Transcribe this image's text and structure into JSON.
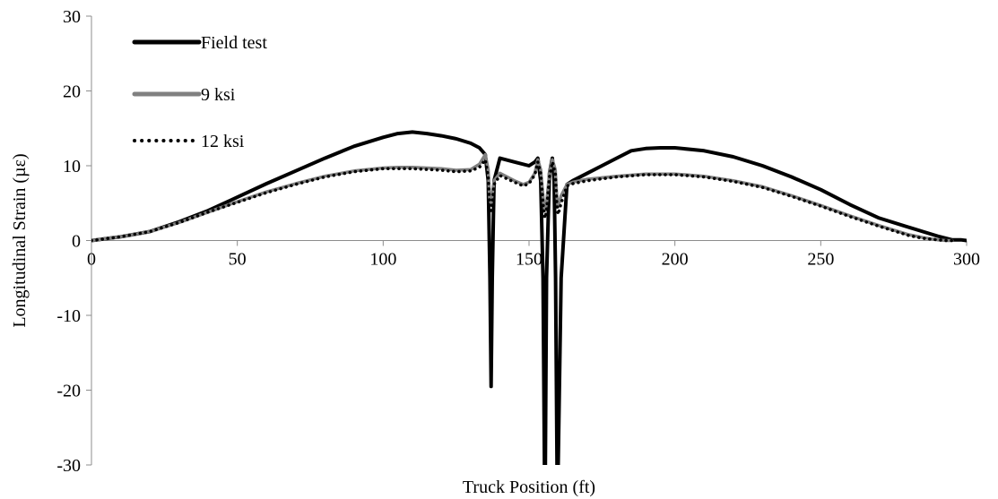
{
  "chart_data": {
    "type": "line",
    "title": "",
    "xlabel": "Truck Position (ft)",
    "ylabel": "Longitudinal Strain (µε)",
    "xlim": [
      0,
      300
    ],
    "ylim": [
      -30,
      30
    ],
    "x_ticks": [
      0,
      50,
      100,
      150,
      200,
      250,
      300
    ],
    "y_ticks": [
      -30,
      -20,
      -10,
      0,
      10,
      20,
      30
    ],
    "grid": false,
    "legend_position": "top-left",
    "series": [
      {
        "name": "Field test",
        "color": "#000000",
        "style": "solid",
        "x": [
          0,
          10,
          20,
          30,
          40,
          50,
          60,
          70,
          80,
          90,
          100,
          105,
          110,
          115,
          120,
          125,
          130,
          133,
          135,
          136,
          136.6,
          137,
          137.4,
          138,
          140,
          145,
          150,
          152,
          153,
          154,
          154.8,
          155.3,
          155.6,
          156,
          157,
          158,
          158.6,
          159.1,
          159.6,
          160,
          161,
          163,
          165,
          170,
          175,
          180,
          185,
          190,
          195,
          200,
          210,
          220,
          230,
          240,
          250,
          260,
          270,
          280,
          285,
          290,
          295,
          298,
          300
        ],
        "values": [
          0,
          0.5,
          1.2,
          2.5,
          4.0,
          5.8,
          7.6,
          9.3,
          11.0,
          12.6,
          13.8,
          14.3,
          14.5,
          14.3,
          14.0,
          13.6,
          13.0,
          12.4,
          11.5,
          8.0,
          -5.0,
          -19.5,
          -5.0,
          8.0,
          11.0,
          10.5,
          10.0,
          10.5,
          11.0,
          8.0,
          -5.0,
          -30.0,
          -30.0,
          -5.0,
          9.0,
          11.0,
          8.0,
          -5.0,
          -30.0,
          -30.0,
          -5.0,
          7.5,
          8.0,
          9.0,
          10.0,
          11.0,
          12.0,
          12.3,
          12.4,
          12.4,
          12.0,
          11.2,
          10.0,
          8.5,
          6.8,
          4.8,
          3.0,
          1.8,
          1.2,
          0.6,
          0.1,
          0.1,
          0
        ]
      },
      {
        "name": "9 ksi",
        "color": "#808080",
        "style": "solid",
        "x": [
          0,
          10,
          20,
          30,
          40,
          50,
          60,
          70,
          80,
          90,
          100,
          105,
          110,
          120,
          125,
          130,
          133,
          135,
          136,
          136.5,
          137,
          137.5,
          138,
          140,
          145,
          148,
          150,
          152,
          153,
          154,
          155,
          155.5,
          156,
          157,
          158,
          159,
          159.5,
          160,
          161,
          163,
          165,
          170,
          180,
          190,
          200,
          210,
          220,
          230,
          240,
          250,
          260,
          270,
          280,
          285,
          290,
          293,
          295
        ],
        "values": [
          0,
          0.5,
          1.2,
          2.4,
          3.8,
          5.2,
          6.5,
          7.6,
          8.6,
          9.3,
          9.7,
          9.8,
          9.8,
          9.6,
          9.4,
          9.5,
          10.2,
          11.5,
          9.5,
          5.5,
          5.0,
          6.5,
          8.0,
          9.0,
          8.0,
          7.5,
          7.8,
          9.0,
          10.8,
          9.5,
          5.0,
          4.0,
          5.0,
          9.0,
          10.8,
          9.5,
          6.0,
          4.5,
          6.0,
          7.5,
          7.8,
          8.2,
          8.6,
          8.9,
          8.9,
          8.6,
          8.0,
          7.2,
          6.0,
          4.7,
          3.3,
          2.0,
          0.8,
          0.4,
          0.1,
          0,
          0
        ]
      },
      {
        "name": "12 ksi",
        "color": "#000000",
        "style": "dotted",
        "x": [
          0,
          10,
          20,
          30,
          40,
          50,
          60,
          70,
          80,
          90,
          100,
          105,
          110,
          120,
          125,
          130,
          133,
          135,
          136,
          136.5,
          137,
          137.5,
          138,
          140,
          145,
          148,
          150,
          152,
          153,
          154,
          155,
          155.5,
          156,
          157,
          158,
          159,
          159.5,
          160,
          161,
          163,
          165,
          170,
          180,
          190,
          200,
          210,
          220,
          230,
          240,
          250,
          260,
          270,
          280,
          285,
          290,
          293,
          295
        ],
        "values": [
          0,
          0.5,
          1.2,
          2.4,
          3.8,
          5.1,
          6.4,
          7.5,
          8.5,
          9.2,
          9.6,
          9.6,
          9.6,
          9.4,
          9.2,
          9.3,
          9.8,
          10.8,
          8.5,
          4.5,
          4.0,
          5.5,
          7.5,
          8.7,
          7.8,
          7.3,
          7.6,
          8.8,
          10.5,
          9.0,
          4.0,
          3.0,
          4.0,
          8.5,
          10.5,
          9.0,
          5.0,
          3.5,
          5.0,
          7.3,
          7.6,
          8.0,
          8.5,
          8.8,
          8.8,
          8.5,
          7.9,
          7.1,
          5.9,
          4.6,
          3.2,
          1.9,
          0.7,
          0.3,
          0.1,
          0,
          0
        ]
      }
    ]
  }
}
